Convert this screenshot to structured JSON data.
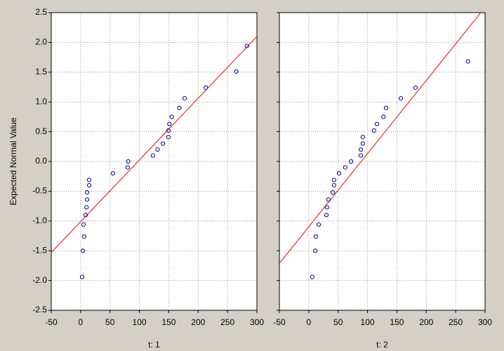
{
  "chart_data": [
    {
      "type": "scatter",
      "xlabel": "t: 1",
      "ylabel": "Expected Normal Value",
      "x": [
        2.6,
        3.8,
        6,
        5,
        8.5,
        10,
        11,
        11,
        14.5,
        14.5,
        55,
        80,
        81,
        123,
        131,
        140,
        149.5,
        149.5,
        151,
        155,
        168,
        177,
        213,
        265,
        283
      ],
      "values": [
        -1.94,
        -1.5,
        -1.26,
        -1.06,
        -0.9,
        -0.77,
        -0.64,
        -0.52,
        -0.4,
        -0.31,
        -0.2,
        -0.1,
        0,
        0.1,
        0.2,
        0.3,
        0.41,
        0.52,
        0.63,
        0.75,
        0.9,
        1.06,
        1.24,
        1.51,
        1.94
      ],
      "color": "#00008b",
      "fit_line": {
        "x": [
          -50,
          300
        ],
        "values": [
          -1.53,
          2.1
        ],
        "color": "#ff0000"
      },
      "xlim": [
        -50,
        300
      ],
      "ylim": [
        -2.5,
        2.5
      ],
      "xticks": [
        -50,
        0,
        50,
        100,
        150,
        200,
        250,
        300
      ],
      "yticks": [
        {
          "value": -2.5,
          "label": "-2.5"
        },
        {
          "value": -2,
          "label": "-2.0"
        },
        {
          "value": -1.5,
          "label": "-1.5"
        },
        {
          "value": -1,
          "label": "-1.0"
        },
        {
          "value": -0.5,
          "label": "-0.5"
        },
        {
          "value": 0,
          "label": "0.0"
        },
        {
          "value": 0.5,
          "label": "0.5"
        },
        {
          "value": 1,
          "label": "1.0"
        },
        {
          "value": 1.5,
          "label": "1.5"
        },
        {
          "value": 2,
          "label": "2.0"
        },
        {
          "value": 2.5,
          "label": "2.5"
        }
      ],
      "grid": true
    },
    {
      "type": "scatter",
      "xlabel": "t: 2",
      "x": [
        6,
        11,
        12,
        17,
        30,
        31,
        33.6,
        41,
        43,
        43,
        51.5,
        62,
        72,
        88.6,
        88.6,
        92,
        92,
        111,
        116,
        127,
        131.6,
        156.7,
        181.7,
        271
      ],
      "values": [
        -1.94,
        -1.5,
        -1.26,
        -1.06,
        -0.9,
        -0.77,
        -0.64,
        -0.52,
        -0.4,
        -0.31,
        -0.2,
        -0.1,
        0,
        0.1,
        0.2,
        0.3,
        0.41,
        0.52,
        0.63,
        0.75,
        0.9,
        1.06,
        1.24,
        1.68
      ],
      "color": "#00008b",
      "fit_line": {
        "x": [
          -50,
          300
        ],
        "values": [
          -1.71,
          2.59
        ],
        "color": "#ff0000"
      },
      "xlim": [
        -50,
        300
      ],
      "ylim": [
        -2.5,
        2.5
      ],
      "xticks": [
        -50,
        0,
        50,
        100,
        150,
        200,
        250,
        300
      ],
      "yticks": [
        -2.5,
        -2,
        -1.5,
        -1,
        -0.5,
        0,
        0.5,
        1,
        1.5,
        2,
        2.5
      ],
      "ytick_labels": false,
      "grid": true
    }
  ]
}
